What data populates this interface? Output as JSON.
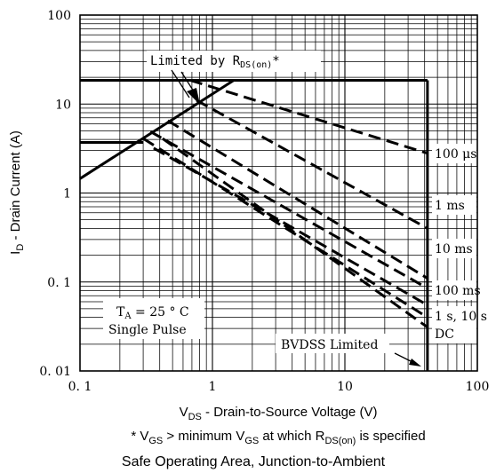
{
  "chart_data": {
    "type": "line",
    "title": "Safe Operating Area, Junction-to-Ambient",
    "xlabel": {
      "main": "V",
      "sub": "DS",
      "rest": " - Drain-to-Source Voltage (V)"
    },
    "ylabel": {
      "main": "I",
      "sub": "D",
      "rest": " - Drain Current (A)"
    },
    "footnote": {
      "p1": "* V",
      "s1": "GS",
      "p2": " > minimum V",
      "s2": "GS",
      "p3": " at which R",
      "s3": "DS(on)",
      "p4": " is specified"
    },
    "xscale": "log",
    "yscale": "log",
    "xlim": [
      0.1,
      100
    ],
    "ylim": [
      0.01,
      100
    ],
    "x_ticks": [
      {
        "v": 0.1,
        "label": "0. 1"
      },
      {
        "v": 1,
        "label": "1"
      },
      {
        "v": 10,
        "label": "10"
      },
      {
        "v": 100,
        "label": "100"
      }
    ],
    "y_ticks": [
      {
        "v": 0.01,
        "label": "0. 01"
      },
      {
        "v": 0.1,
        "label": "0. 1"
      },
      {
        "v": 1,
        "label": "1"
      },
      {
        "v": 10,
        "label": "10"
      },
      {
        "v": 100,
        "label": "100"
      }
    ],
    "grid": true,
    "series": [
      {
        "type": "solid",
        "points": [
          [
            0.1,
            1.45
          ],
          [
            1.45,
            18.5
          ]
        ]
      },
      {
        "type": "solid",
        "points": [
          [
            0.1,
            3.7
          ],
          [
            0.3,
            3.7
          ]
        ]
      },
      {
        "type": "solid",
        "points": [
          [
            0.1,
            18.5
          ],
          [
            42,
            18.5
          ]
        ]
      },
      {
        "type": "solid",
        "points": [
          [
            42,
            18.5
          ],
          [
            42,
            0.01
          ]
        ]
      },
      {
        "type": "dashed",
        "points": [
          [
            0.68,
            18.5
          ],
          [
            42,
            2.8
          ]
        ]
      },
      {
        "type": "dashed",
        "points": [
          [
            1.45,
            18.5
          ],
          [
            5.5,
            18.5
          ]
        ]
      },
      {
        "type": "dashed",
        "points": [
          [
            0.76,
            11
          ],
          [
            42,
            0.4
          ]
        ]
      },
      {
        "type": "dashed",
        "points": [
          [
            0.46,
            6.5
          ],
          [
            42,
            0.11
          ]
        ]
      },
      {
        "type": "dashed",
        "points": [
          [
            0.34,
            4.9
          ],
          [
            42,
            0.085
          ]
        ]
      },
      {
        "type": "dashed",
        "points": [
          [
            0.3,
            4.1
          ],
          [
            42,
            0.04
          ]
        ]
      },
      {
        "type": "dashed",
        "points": [
          [
            0.42,
            4.1
          ],
          [
            42,
            0.031
          ]
        ]
      },
      {
        "type": "dashed",
        "points": [
          [
            0.36,
            3.2
          ],
          [
            42,
            0.055
          ]
        ]
      }
    ],
    "annotations": {
      "rds": {
        "text": "Limited by R",
        "sub": "DS(on)",
        "suffix": "*"
      },
      "ta": {
        "line1_main": "T",
        "line1_sub": "A",
        "line1_rest": " = 25 ° C",
        "line2": "Single Pulse"
      },
      "bvdss": {
        "text": "BVDSS Limited"
      }
    },
    "curve_labels": [
      {
        "label": "100 μs"
      },
      {
        "label": "1 ms"
      },
      {
        "label": "10 ms"
      },
      {
        "label": "100 ms"
      },
      {
        "label": "1 s, 10 s"
      },
      {
        "label": "DC"
      }
    ]
  }
}
